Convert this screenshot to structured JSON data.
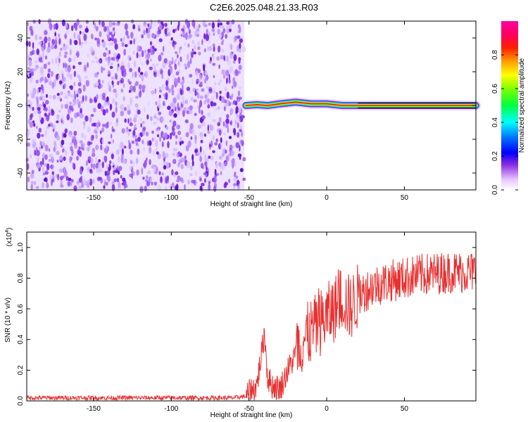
{
  "title": "C2E6.2025.048.21.33.R03",
  "chart_data": [
    {
      "type": "heatmap",
      "xlabel": "Height of straight line (km)",
      "ylabel": "Frequency (Hz)",
      "xlim": [
        -193,
        96
      ],
      "ylim": [
        -50,
        50
      ],
      "xticks": [
        -150,
        -100,
        -50,
        0,
        50
      ],
      "xtick_labels": [
        "-150",
        "-100",
        "-50",
        "0",
        "50"
      ],
      "yticks": [
        40,
        20,
        0,
        -20,
        -40
      ],
      "ytick_labels": [
        "40",
        "20",
        "0",
        "-20",
        "-40"
      ],
      "noise_region_x": [
        -193,
        -53
      ],
      "signal_track": [
        {
          "x": -52,
          "y": 0
        },
        {
          "x": -45,
          "y": 0.5
        },
        {
          "x": -38,
          "y": 0
        },
        {
          "x": -30,
          "y": 1
        },
        {
          "x": -20,
          "y": 2
        },
        {
          "x": -10,
          "y": 1
        },
        {
          "x": 0,
          "y": 1
        },
        {
          "x": 10,
          "y": 0
        },
        {
          "x": 20,
          "y": 0
        },
        {
          "x": 40,
          "y": 0
        },
        {
          "x": 60,
          "y": 0
        },
        {
          "x": 80,
          "y": 0
        },
        {
          "x": 96,
          "y": 0
        }
      ],
      "colorbar": {
        "label": "Normalized spectral amplitude",
        "ticks": [
          0.0,
          0.2,
          0.4,
          0.6,
          0.8
        ],
        "tick_labels": [
          "0.0",
          "0.2",
          "0.4",
          "0.6",
          "0.8"
        ],
        "range": [
          0,
          1
        ]
      },
      "grid": false
    },
    {
      "type": "line",
      "xlabel": "Height of straight line (km)",
      "ylabel": "SNR (10 * v/v)",
      "y_multiplier_label": "(x10",
      "y_multiplier_exp": "4",
      "xlim": [
        -193,
        96
      ],
      "ylim": [
        0,
        1.1
      ],
      "xticks": [
        -150,
        -100,
        -50,
        0,
        50
      ],
      "xtick_labels": [
        "-150",
        "-100",
        "-50",
        "0",
        "50"
      ],
      "yticks": [
        0.0,
        0.2,
        0.4,
        0.6,
        0.8,
        1.0
      ],
      "ytick_labels": [
        "0.0",
        "0.2",
        "0.4",
        "0.6",
        "0.8",
        "1.0"
      ],
      "series_color": "#e83030",
      "series": [
        {
          "x": [
            -193,
            -150,
            -100,
            -60,
            -52,
            -45,
            -42,
            -40,
            -38,
            -35,
            -30,
            -25,
            -20,
            -15,
            -10,
            -5,
            0,
            5,
            10,
            15,
            20,
            25,
            30,
            40,
            50,
            60,
            70,
            80,
            90,
            96
          ],
          "values": [
            0.02,
            0.02,
            0.02,
            0.02,
            0.03,
            0.1,
            0.3,
            0.45,
            0.15,
            0.1,
            0.08,
            0.2,
            0.3,
            0.4,
            0.45,
            0.5,
            0.55,
            0.6,
            0.68,
            0.6,
            0.68,
            0.72,
            0.75,
            0.78,
            0.8,
            0.82,
            0.83,
            0.84,
            0.84,
            0.84
          ]
        }
      ],
      "grid": false
    }
  ]
}
